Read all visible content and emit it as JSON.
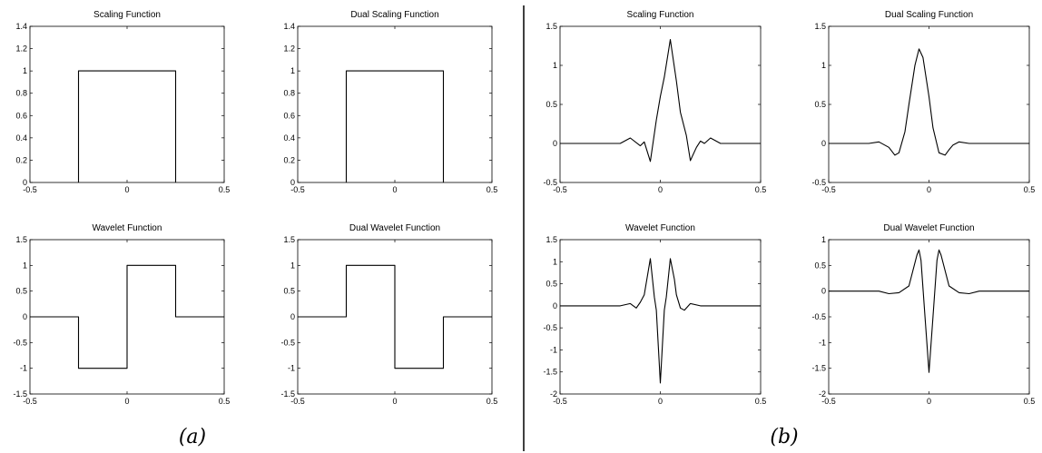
{
  "panel_labels": {
    "a": "(a)",
    "b": "(b)"
  },
  "chart_data": [
    {
      "type": "line",
      "panel": "a",
      "title": "Scaling Function",
      "xlabel": "",
      "ylabel": "",
      "xlim": [
        -0.5,
        0.5
      ],
      "ylim": [
        0,
        1.4
      ],
      "xticks": [
        -0.5,
        0,
        0.5
      ],
      "xtick_labels": [
        "-0.5",
        "0",
        "0.5"
      ],
      "yticks": [
        0,
        0.2,
        0.4,
        0.6,
        0.8,
        1,
        1.2,
        1.4
      ],
      "ytick_labels": [
        "0",
        "0.2",
        "0.4",
        "0.6",
        "0.8",
        "1",
        "1.2",
        "1.4"
      ],
      "series": [
        {
          "x": [
            -0.25,
            -0.25,
            0.25,
            0.25
          ],
          "y": [
            0,
            1,
            1,
            0
          ]
        }
      ]
    },
    {
      "type": "line",
      "panel": "a",
      "title": "Dual Scaling Function",
      "xlabel": "",
      "ylabel": "",
      "xlim": [
        -0.5,
        0.5
      ],
      "ylim": [
        0,
        1.4
      ],
      "xticks": [
        -0.5,
        0,
        0.5
      ],
      "xtick_labels": [
        "-0.5",
        "0",
        "0.5"
      ],
      "yticks": [
        0,
        0.2,
        0.4,
        0.6,
        0.8,
        1,
        1.2,
        1.4
      ],
      "ytick_labels": [
        "0",
        "0.2",
        "0.4",
        "0.6",
        "0.8",
        "1",
        "1.2",
        "1.4"
      ],
      "series": [
        {
          "x": [
            -0.25,
            -0.25,
            0.25,
            0.25
          ],
          "y": [
            0,
            1,
            1,
            0
          ]
        }
      ]
    },
    {
      "type": "line",
      "panel": "b",
      "title": "Scaling Function",
      "xlabel": "",
      "ylabel": "",
      "xlim": [
        -0.5,
        0.5
      ],
      "ylim": [
        -0.5,
        1.5
      ],
      "xticks": [
        -0.5,
        0,
        0.5
      ],
      "xtick_labels": [
        "-0.5",
        "0",
        "0.5"
      ],
      "yticks": [
        -0.5,
        0,
        0.5,
        1,
        1.5
      ],
      "ytick_labels": [
        "-0.5",
        "0",
        "0.5",
        "1",
        "1.5"
      ],
      "series": [
        {
          "x": [
            -0.5,
            -0.2,
            -0.15,
            -0.1,
            -0.08,
            -0.05,
            -0.02,
            0.0,
            0.02,
            0.05,
            0.08,
            0.1,
            0.13,
            0.15,
            0.18,
            0.2,
            0.22,
            0.25,
            0.3,
            0.5
          ],
          "y": [
            0,
            0,
            0.07,
            -0.03,
            0.02,
            -0.23,
            0.3,
            0.6,
            0.85,
            1.33,
            0.8,
            0.4,
            0.1,
            -0.22,
            -0.05,
            0.03,
            0.0,
            0.07,
            0,
            0
          ]
        }
      ]
    },
    {
      "type": "line",
      "panel": "b",
      "title": "Dual Scaling Function",
      "xlabel": "",
      "ylabel": "",
      "xlim": [
        -0.5,
        0.5
      ],
      "ylim": [
        -0.5,
        1.5
      ],
      "xticks": [
        -0.5,
        0,
        0.5
      ],
      "xtick_labels": [
        "-0.5",
        "0",
        "0.5"
      ],
      "yticks": [
        -0.5,
        0,
        0.5,
        1,
        1.5
      ],
      "ytick_labels": [
        "-0.5",
        "0",
        "0.5",
        "1",
        "1.5"
      ],
      "series": [
        {
          "x": [
            -0.5,
            -0.3,
            -0.25,
            -0.2,
            -0.17,
            -0.15,
            -0.12,
            -0.1,
            -0.07,
            -0.05,
            -0.03,
            0.0,
            0.02,
            0.05,
            0.08,
            0.1,
            0.12,
            0.15,
            0.2,
            0.5
          ],
          "y": [
            0,
            0,
            0.02,
            -0.05,
            -0.15,
            -0.12,
            0.15,
            0.5,
            1.0,
            1.21,
            1.1,
            0.6,
            0.2,
            -0.12,
            -0.15,
            -0.08,
            -0.02,
            0.02,
            0,
            0
          ]
        }
      ]
    },
    {
      "type": "line",
      "panel": "a",
      "title": "Wavelet Function",
      "xlabel": "",
      "ylabel": "",
      "xlim": [
        -0.5,
        0.5
      ],
      "ylim": [
        -1.5,
        1.5
      ],
      "xticks": [
        -0.5,
        0,
        0.5
      ],
      "xtick_labels": [
        "-0.5",
        "0",
        "0.5"
      ],
      "yticks": [
        -1.5,
        -1,
        -0.5,
        0,
        0.5,
        1,
        1.5
      ],
      "ytick_labels": [
        "-1.5",
        "-1",
        "-0.5",
        "0",
        "0.5",
        "1",
        "1.5"
      ],
      "series": [
        {
          "x": [
            -0.5,
            -0.25,
            -0.25,
            0,
            0,
            0.25,
            0.25,
            0.5
          ],
          "y": [
            0,
            0,
            -1,
            -1,
            1,
            1,
            0,
            0
          ]
        }
      ]
    },
    {
      "type": "line",
      "panel": "a",
      "title": "Dual Wavelet Function",
      "xlabel": "",
      "ylabel": "",
      "xlim": [
        -0.5,
        0.5
      ],
      "ylim": [
        -1.5,
        1.5
      ],
      "xticks": [
        -0.5,
        0,
        0.5
      ],
      "xtick_labels": [
        "-0.5",
        "0",
        "0.5"
      ],
      "yticks": [
        -1.5,
        -1,
        -0.5,
        0,
        0.5,
        1,
        1.5
      ],
      "ytick_labels": [
        "-1.5",
        "-1",
        "-0.5",
        "0",
        "0.5",
        "1",
        "1.5"
      ],
      "series": [
        {
          "x": [
            -0.5,
            -0.25,
            -0.25,
            0,
            0,
            0.25,
            0.25,
            0.5
          ],
          "y": [
            0,
            0,
            1,
            1,
            -1,
            -1,
            0,
            0
          ]
        }
      ]
    },
    {
      "type": "line",
      "panel": "b",
      "title": "Wavelet Function",
      "xlabel": "",
      "ylabel": "",
      "xlim": [
        -0.5,
        0.5
      ],
      "ylim": [
        -2,
        1.5
      ],
      "xticks": [
        -0.5,
        0,
        0.5
      ],
      "xtick_labels": [
        "-0.5",
        "0",
        "0.5"
      ],
      "yticks": [
        -2,
        -1.5,
        -1,
        -0.5,
        0,
        0.5,
        1,
        1.5
      ],
      "ytick_labels": [
        "-2",
        "-1.5",
        "-1",
        "-0.5",
        "0",
        "0.5",
        "1",
        "1.5"
      ],
      "series": [
        {
          "x": [
            -0.5,
            -0.2,
            -0.15,
            -0.12,
            -0.1,
            -0.08,
            -0.05,
            -0.03,
            -0.02,
            0.0,
            0.02,
            0.03,
            0.05,
            0.07,
            0.08,
            0.1,
            0.12,
            0.15,
            0.2,
            0.5
          ],
          "y": [
            0,
            0,
            0.05,
            -0.05,
            0.08,
            0.25,
            1.07,
            0.2,
            -0.1,
            -1.75,
            -0.1,
            0.2,
            1.07,
            0.6,
            0.25,
            -0.05,
            -0.1,
            0.05,
            0,
            0
          ]
        }
      ]
    },
    {
      "type": "line",
      "panel": "b",
      "title": "Dual Wavelet Function",
      "xlabel": "",
      "ylabel": "",
      "xlim": [
        -0.5,
        0.5
      ],
      "ylim": [
        -2,
        1
      ],
      "xticks": [
        -0.5,
        0,
        0.5
      ],
      "xtick_labels": [
        "-0.5",
        "0",
        "0.5"
      ],
      "yticks": [
        -2,
        -1.5,
        -1,
        -0.5,
        0,
        0.5,
        1
      ],
      "ytick_labels": [
        "-2",
        "-1.5",
        "-1",
        "-0.5",
        "0",
        "0.5",
        "1"
      ],
      "series": [
        {
          "x": [
            -0.5,
            -0.25,
            -0.2,
            -0.15,
            -0.1,
            -0.08,
            -0.06,
            -0.05,
            -0.04,
            -0.02,
            0.0,
            0.02,
            0.04,
            0.05,
            0.06,
            0.08,
            0.1,
            0.15,
            0.2,
            0.25,
            0.5
          ],
          "y": [
            0,
            0,
            -0.05,
            -0.03,
            0.1,
            0.4,
            0.7,
            0.8,
            0.6,
            -0.5,
            -1.58,
            -0.5,
            0.6,
            0.8,
            0.7,
            0.4,
            0.1,
            -0.03,
            -0.05,
            0,
            0
          ]
        }
      ]
    }
  ]
}
